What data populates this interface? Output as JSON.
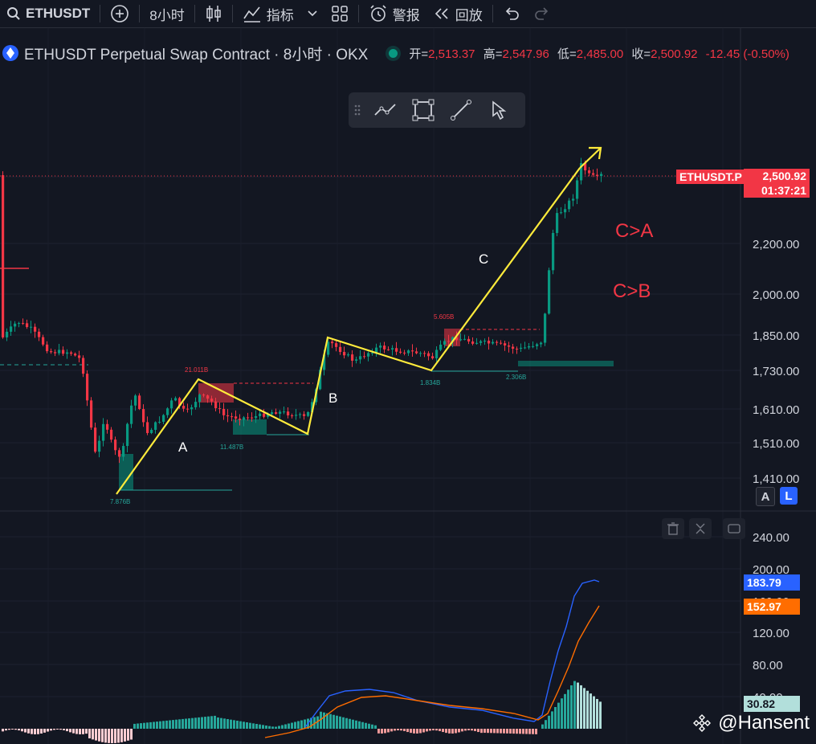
{
  "toolbar": {
    "symbol": "ETHUSDT",
    "interval": "8小时",
    "indicators_label": "指标",
    "alert_label": "警报",
    "replay_label": "回放"
  },
  "legend": {
    "title": "ETHUSDT Perpetual Swap Contract · 8小时 · OKX",
    "open_label": "开=",
    "open": "2,513.37",
    "high_label": "高=",
    "high": "2,547.96",
    "low_label": "低=",
    "low": "2,485.00",
    "close_label": "收=",
    "close": "2,500.92",
    "change": "-12.45 (-0.50%)"
  },
  "price_axis": {
    "ticks": [
      "2,200.00",
      "2,000.00",
      "1,850.00",
      "1,730.00",
      "1,610.00",
      "1,510.00",
      "1,410.00"
    ],
    "last_symbol_tag": "ETHUSDT.P",
    "last_price": "2,500.92",
    "countdown": "01:37:21",
    "scale_buttons": [
      "A",
      "L"
    ]
  },
  "macd_axis": {
    "ticks": [
      "240.00",
      "200.00",
      "160.00",
      "120.00",
      "80.00",
      "40.00"
    ],
    "macd_value": "183.79",
    "signal_value": "152.97",
    "hist_value": "30.82"
  },
  "annotations": {
    "wave_labels": [
      "A",
      "B",
      "C"
    ],
    "comparisons": [
      "C>A",
      "C>B"
    ],
    "volume_labels": [
      "21.011B",
      "11.487B",
      "7.876B",
      "5.605B",
      "1.834B",
      "2.306B"
    ]
  },
  "colors": {
    "background": "#131722",
    "up": "#089981",
    "down": "#f23645",
    "wave_line": "#ffeb3b",
    "macd_line": "#2962ff",
    "signal_line": "#ff6d00"
  },
  "watermark": "@Hansent",
  "chart_data": {
    "type": "candlestick",
    "series": [
      {
        "name": "price_min",
        "values": [
          1420
        ]
      },
      {
        "name": "price_max",
        "values": [
          2547.96
        ]
      }
    ],
    "macd": {
      "macd": 183.79,
      "signal": 152.97,
      "histogram": 30.82
    },
    "ylim": [
      1400,
      2560
    ]
  }
}
